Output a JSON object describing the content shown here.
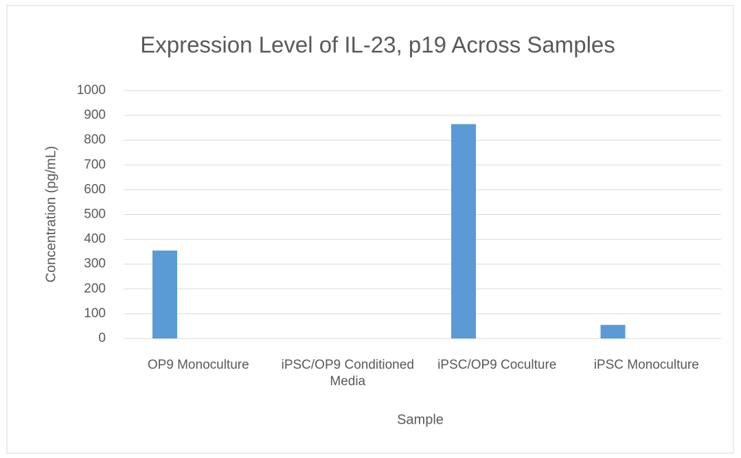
{
  "chart_data": {
    "type": "bar",
    "title": "Expression Level of IL-23, p19 Across Samples",
    "x_label": "Sample",
    "y_label": "Concentration (pg/mL)",
    "categories": [
      "OP9 Monoculture",
      "iPSC/OP9 Conditioned Media",
      "iPSC/OP9 Coculture",
      "iPSC Monoculture"
    ],
    "values": [
      355,
      0,
      865,
      55
    ],
    "color": "#5b9bd5",
    "ylim": [
      0,
      1000
    ],
    "yticks": [
      0,
      100,
      200,
      300,
      400,
      500,
      600,
      700,
      800,
      900,
      1000
    ],
    "grid": true
  }
}
